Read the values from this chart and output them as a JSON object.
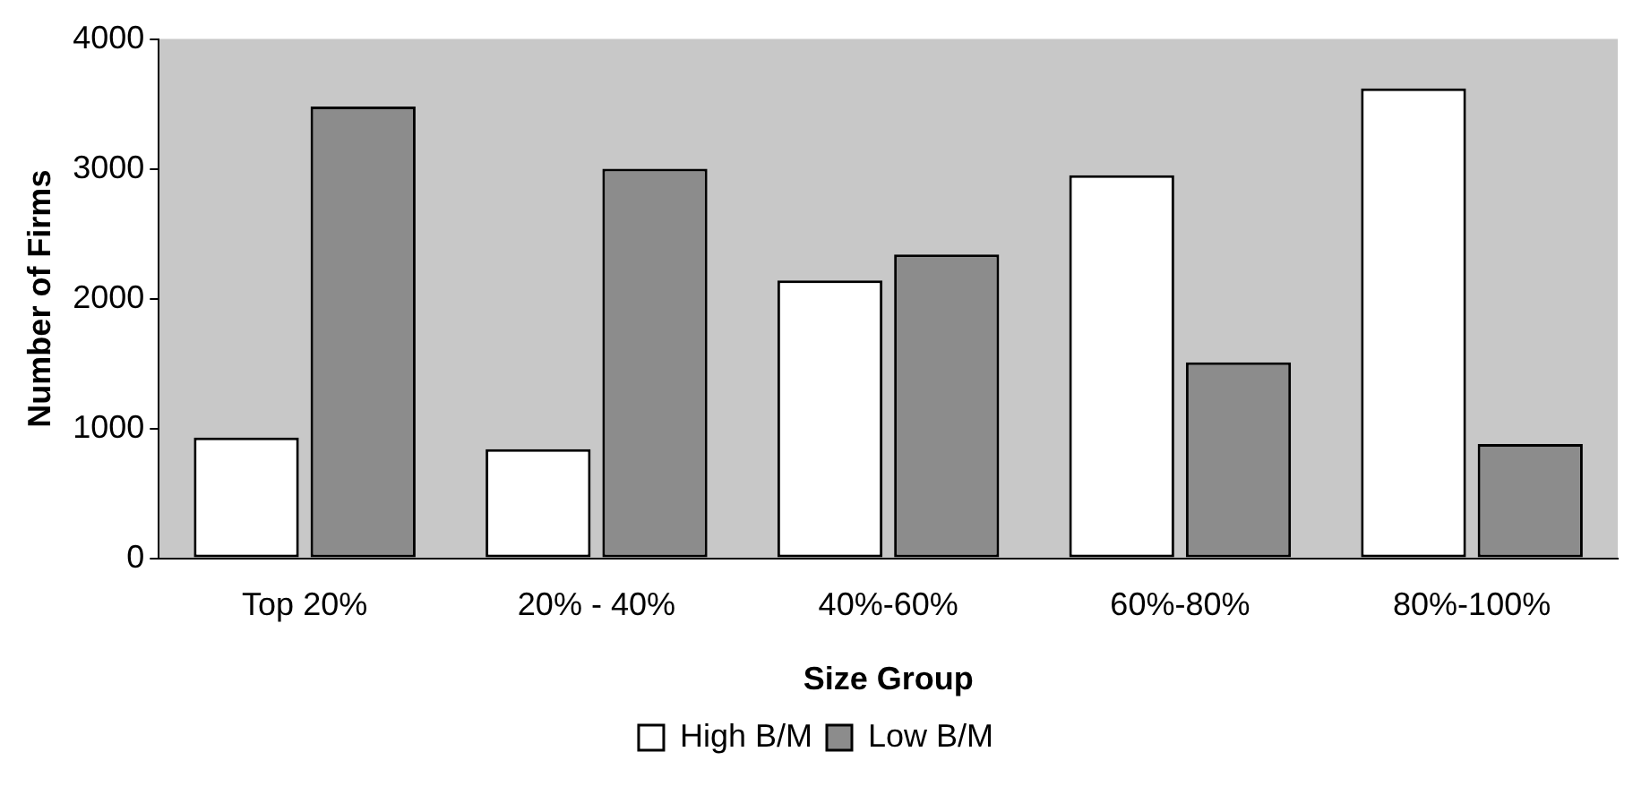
{
  "chart_data": {
    "type": "bar",
    "xlabel": "Size Group",
    "ylabel": "Number of Firms",
    "categories": [
      "Top 20%",
      "20% - 40%",
      "40%-60%",
      "60%-80%",
      "80%-100%"
    ],
    "series": [
      {
        "name": "High B/M",
        "color": "#ffffff",
        "values": [
          930,
          840,
          2140,
          2950,
          3620
        ]
      },
      {
        "name": "Low B/M",
        "color": "#8c8c8c",
        "values": [
          3480,
          3000,
          2340,
          1510,
          880
        ]
      }
    ],
    "ylim": [
      0,
      4000
    ],
    "yticks": [
      0,
      1000,
      2000,
      3000,
      4000
    ],
    "grid": false,
    "legend": "bottom"
  }
}
